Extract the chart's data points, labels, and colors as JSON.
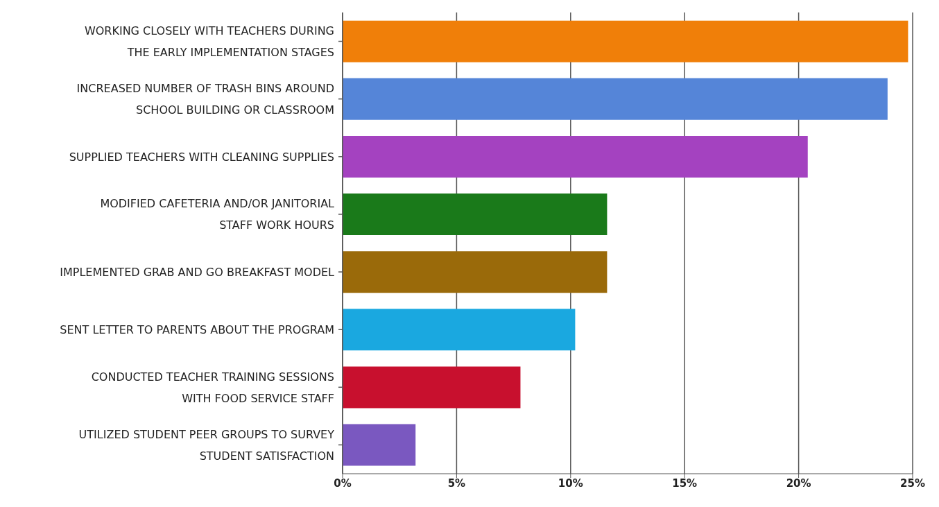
{
  "chart_data": {
    "type": "bar",
    "orientation": "horizontal",
    "categories": [
      "WORKING CLOSELY WITH TEACHERS DURING\nTHE EARLY IMPLEMENTATION STAGES",
      "INCREASED NUMBER OF TRASH BINS AROUND\nSCHOOL BUILDING OR CLASSROOM",
      "SUPPLIED TEACHERS WITH CLEANING SUPPLIES",
      "MODIFIED CAFETERIA AND/OR JANITORIAL\nSTAFF WORK HOURS",
      "IMPLEMENTED GRAB AND GO BREAKFAST MODEL",
      "SENT LETTER TO PARENTS ABOUT THE PROGRAM",
      "CONDUCTED TEACHER TRAINING SESSIONS\nWITH FOOD SERVICE STAFF",
      "UTILIZED STUDENT PEER GROUPS TO SURVEY\nSTUDENT SATISFACTION"
    ],
    "values": [
      24.8,
      23.9,
      20.4,
      11.6,
      11.6,
      10.2,
      7.8,
      3.2
    ],
    "colors": [
      "#f07f09",
      "#5585d8",
      "#a442c0",
      "#1a7a1a",
      "#9a6a0a",
      "#1aa8e0",
      "#c8102e",
      "#7a58c0"
    ],
    "xlim": [
      0,
      25
    ],
    "xticks": [
      {
        "value": 0,
        "label": "0%"
      },
      {
        "value": 5,
        "label": "5%"
      },
      {
        "value": 10,
        "label": "10%"
      },
      {
        "value": 15,
        "label": "15%"
      },
      {
        "value": 20,
        "label": "20%"
      },
      {
        "value": 25,
        "label": "25%"
      }
    ],
    "grid": "x"
  }
}
